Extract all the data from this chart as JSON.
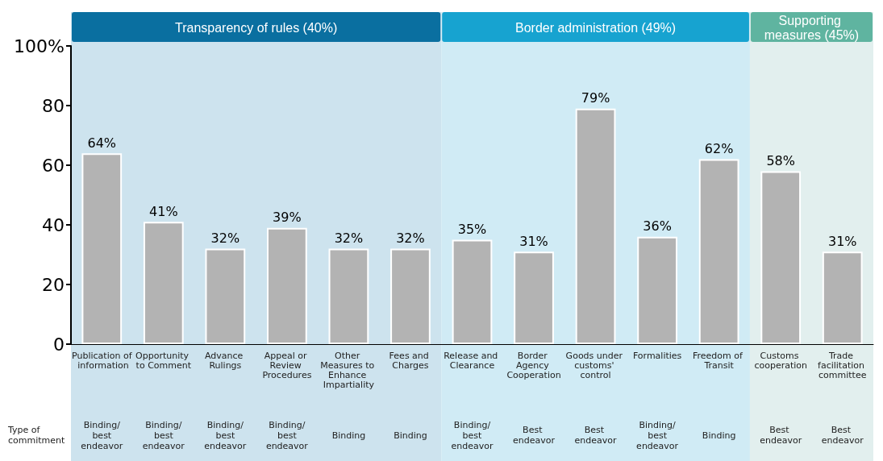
{
  "chart_data": {
    "type": "bar",
    "categories": [
      "Publication of information",
      "Opportunity to Comment",
      "Advance Rulings",
      "Appeal or Review Procedures",
      "Other Measures to Enhance Impartiality",
      "Fees and Charges",
      "Release and Clearance",
      "Border Agency Cooperation",
      "Goods under customs' control",
      "Formalities",
      "Freedom of Transit",
      "Customs cooperation",
      "Trade facilitation committee"
    ],
    "values": [
      64,
      41,
      32,
      39,
      32,
      32,
      35,
      31,
      79,
      36,
      62,
      58,
      31
    ],
    "value_labels": [
      "64%",
      "41%",
      "32%",
      "39%",
      "32%",
      "32%",
      "35%",
      "31%",
      "79%",
      "36%",
      "62%",
      "58%",
      "31%"
    ],
    "color": "#b3b3b3",
    "ylim": [
      0,
      100
    ],
    "yticks": [
      0,
      20,
      40,
      60,
      80,
      {
        "value": 100,
        "label": "100%"
      }
    ],
    "grid": false,
    "bands": [
      {
        "axis": "x",
        "from": "Publication of information",
        "to": "Fees and Charges",
        "label": "Transparency of rules (40%)",
        "color": "#cde3ee"
      },
      {
        "axis": "x",
        "from": "Release and Clearance",
        "to": "Freedom of Transit",
        "label": "Border administration (49%)",
        "color": "#d0ebf5"
      },
      {
        "axis": "x",
        "from": "Customs cooperation",
        "to": "Trade facilitation committee",
        "label": "Supporting measures (45%)",
        "color": "#e2efee"
      }
    ],
    "annotations": [
      "Type of commitment",
      "Binding/ best endeavor",
      "Binding/ best endeavor",
      "Binding/ best endeavor",
      "Binding/ best endeavor",
      "Binding",
      "Binding",
      "Binding/ best endeavor",
      "Best endeavor",
      "Best endeavor",
      "Binding/ best endeavor",
      "Binding",
      "Best endeavor",
      "Best endeavor"
    ]
  }
}
